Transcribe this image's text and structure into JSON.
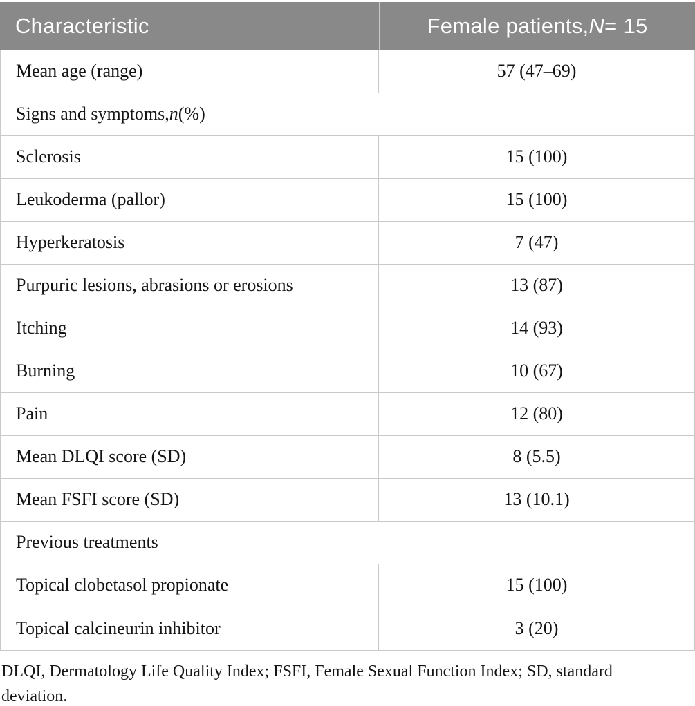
{
  "colors": {
    "header_bg": "#898989",
    "header_text": "#ffffff",
    "border": "#c9c9c9",
    "body_text": "#141414"
  },
  "table": {
    "header": {
      "col1": "Characteristic",
      "col2_parts": [
        "Female patients, ",
        "N",
        " = 15"
      ]
    },
    "rows": [
      {
        "type": "data",
        "label": "Mean age (range)",
        "value": "57 (47–69)"
      },
      {
        "type": "section",
        "parts": [
          "Signs and symptoms, ",
          "n",
          " (%)"
        ]
      },
      {
        "type": "data",
        "label": "Sclerosis",
        "value": "15 (100)"
      },
      {
        "type": "data",
        "label": "Leukoderma (pallor)",
        "value": "15 (100)"
      },
      {
        "type": "data",
        "label": "Hyperkeratosis",
        "value": "7 (47)"
      },
      {
        "type": "data",
        "label": "Purpuric lesions, abrasions or erosions",
        "value": "13 (87)"
      },
      {
        "type": "data",
        "label": "Itching",
        "value": "14 (93)"
      },
      {
        "type": "data",
        "label": "Burning",
        "value": "10 (67)"
      },
      {
        "type": "data",
        "label": "Pain",
        "value": "12 (80)"
      },
      {
        "type": "data",
        "label": "Mean DLQI score (SD)",
        "value": "8 (5.5)"
      },
      {
        "type": "data",
        "label": "Mean FSFI score (SD)",
        "value": "13 (10.1)"
      },
      {
        "type": "section",
        "label": "Previous treatments"
      },
      {
        "type": "data",
        "label": "Topical clobetasol propionate",
        "value": "15 (100)"
      },
      {
        "type": "data",
        "label": "Topical calcineurin inhibitor",
        "value": "3 (20)"
      }
    ],
    "footnote": "DLQI, Dermatology Life Quality Index; FSFI, Female Sexual Function Index; SD, standard deviation."
  }
}
